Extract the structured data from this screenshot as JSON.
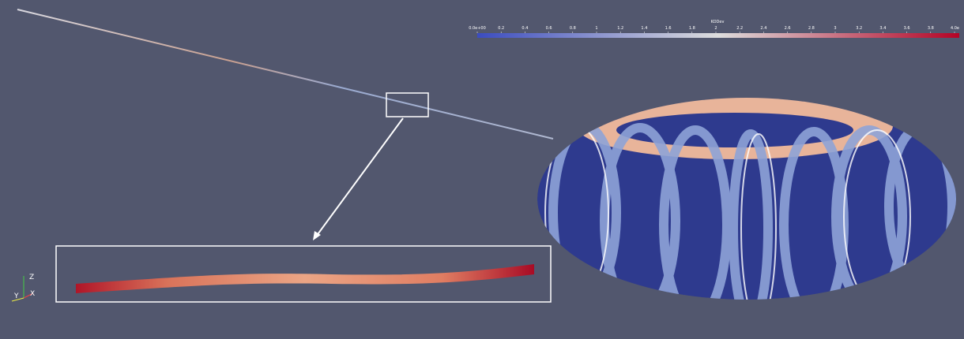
{
  "colorbar": {
    "title": "KODev",
    "range": [
      0,
      4
    ],
    "ticks": [
      {
        "value": 0,
        "label": "0.0e+00"
      },
      0.2,
      0.4,
      0.6,
      0.8,
      1,
      1.2,
      1.4,
      1.6,
      1.8,
      2,
      2.2,
      2.4,
      2.6,
      2.8,
      3,
      3.2,
      3.4,
      3.6,
      3.8,
      {
        "value": 4,
        "label": "4.0e"
      }
    ]
  },
  "axes": {
    "z": "Z",
    "x": "X",
    "y": "Y"
  }
}
